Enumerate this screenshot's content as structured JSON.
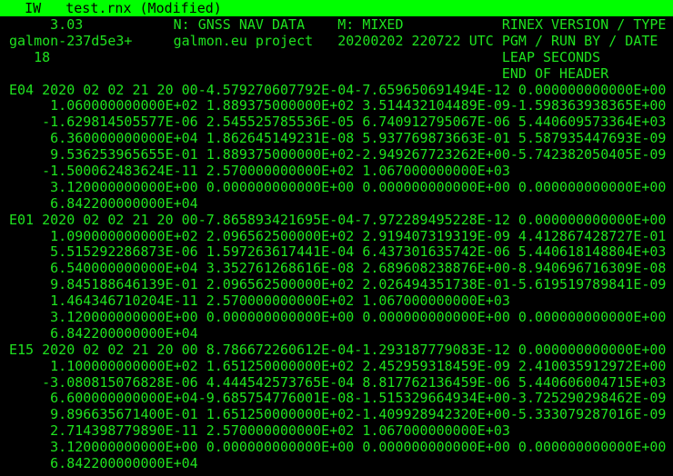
{
  "titlebar": {
    "mode": "IW",
    "filename": "test.rnx",
    "status": "(Modified)"
  },
  "lines": [
    "     3.03           N: GNSS NAV DATA    M: MIXED            RINEX VERSION / TYPE",
    "galmon-237d5e3+     galmon.eu project   20200202 220722 UTC PGM / RUN BY / DATE",
    "   18                                                       LEAP SECONDS",
    "                                                            END OF HEADER",
    "E04 2020 02 02 21 20 00-4.579270607792E-04-7.659650691494E-12 0.000000000000E+00",
    "     1.060000000000E+02 1.889375000000E+02 3.514432104489E-09-1.598363938365E+00",
    "    -1.629814505577E-06 2.545525785536E-05 6.740912795067E-06 5.440609573364E+03",
    "     6.360000000000E+04 1.862645149231E-08 5.937769873663E-01 5.587935447693E-09",
    "     9.536253965655E-01 1.889375000000E+02-2.949267723262E+00-5.742382050405E-09",
    "    -1.500062483624E-11 2.570000000000E+02 1.067000000000E+03",
    "     3.120000000000E+00 0.000000000000E+00 0.000000000000E+00 0.000000000000E+00",
    "     6.842200000000E+04",
    "E01 2020 02 02 21 20 00-7.865893421695E-04-7.972289495228E-12 0.000000000000E+00",
    "     1.090000000000E+02 2.096562500000E+02 2.919407319319E-09 4.412867428727E-01",
    "     5.515292286873E-06 1.597263617441E-04 6.437301635742E-06 5.440618148804E+03",
    "     6.540000000000E+04 3.352761268616E-08 2.689608238876E+00-8.940696716309E-08",
    "     9.845188646139E-01 2.096562500000E+02 2.026494351738E-01-5.619519789841E-09",
    "     1.464346710204E-11 2.570000000000E+02 1.067000000000E+03",
    "     3.120000000000E+00 0.000000000000E+00 0.000000000000E+00 0.000000000000E+00",
    "     6.842200000000E+04",
    "E15 2020 02 02 21 20 00 8.786672260612E-04-1.293187779083E-12 0.000000000000E+00",
    "     1.100000000000E+02 1.651250000000E+02 2.452959318459E-09 2.410035912972E+00",
    "    -3.080815076828E-06 4.444542573765E-04 8.817762136459E-06 5.440606004715E+03",
    "     6.600000000000E+04-9.685754776001E-08-1.515329664934E+00-3.725290298462E-09",
    "     9.896635671400E-01 1.651250000000E+02-1.409928942320E+00-5.333079287016E-09",
    "     2.714398779890E-11 2.570000000000E+02 1.067000000000E+03",
    "     3.120000000000E+00 0.000000000000E+00 0.000000000000E+00 0.000000000000E+00",
    "     6.842200000000E+04"
  ],
  "colors": {
    "titlebar_bg": "#00ff00",
    "text": "#1fe31f",
    "background": "#000000"
  }
}
